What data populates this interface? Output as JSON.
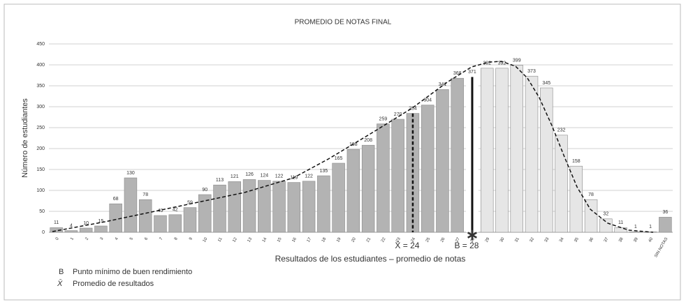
{
  "chart_data": {
    "type": "bar",
    "title": "PROMEDIO DE NOTAS FINAL",
    "y_label": "Número de estudiantes",
    "x_label": "Resultados de los estudiantes – promedio de notas",
    "categories": [
      "0",
      "1",
      "2",
      "3",
      "4",
      "5",
      "6",
      "7",
      "8",
      "9",
      "10",
      "11",
      "12",
      "13",
      "14",
      "15",
      "16",
      "17",
      "18",
      "19",
      "20",
      "21",
      "22",
      "23",
      "24",
      "25",
      "26",
      "27",
      "28",
      "29",
      "30",
      "31",
      "32",
      "33",
      "34",
      "35",
      "36",
      "37",
      "38",
      "39",
      "40",
      "SIN NOTAS"
    ],
    "values": [
      11,
      4,
      10,
      15,
      68,
      130,
      78,
      40,
      42,
      59,
      90,
      113,
      121,
      126,
      124,
      122,
      119,
      122,
      135,
      165,
      198,
      208,
      259,
      270,
      284,
      304,
      341,
      368,
      371,
      392,
      392,
      399,
      373,
      345,
      232,
      158,
      78,
      32,
      11,
      1,
      1,
      36
    ],
    "colors": [
      "#b3b3b3",
      "#b3b3b3",
      "#b3b3b3",
      "#b3b3b3",
      "#b3b3b3",
      "#b3b3b3",
      "#b3b3b3",
      "#b3b3b3",
      "#b3b3b3",
      "#b3b3b3",
      "#b3b3b3",
      "#b3b3b3",
      "#b3b3b3",
      "#b3b3b3",
      "#b3b3b3",
      "#b3b3b3",
      "#b3b3b3",
      "#b3b3b3",
      "#b3b3b3",
      "#b3b3b3",
      "#b3b3b3",
      "#b3b3b3",
      "#b3b3b3",
      "#b3b3b3",
      "#b3b3b3",
      "#b3b3b3",
      "#b3b3b3",
      "#b3b3b3",
      "#ffffff",
      "#e6e6e6",
      "#e6e6e6",
      "#e6e6e6",
      "#e6e6e6",
      "#e6e6e6",
      "#e6e6e6",
      "#e6e6e6",
      "#e6e6e6",
      "#e6e6e6",
      "#e6e6e6",
      "#e6e6e6",
      "#e6e6e6",
      "#b3b3b3"
    ],
    "ylim": [
      0,
      450
    ],
    "yticks": [
      0,
      50,
      100,
      150,
      200,
      250,
      300,
      350,
      400,
      450
    ],
    "grid": true,
    "markers": [
      {
        "label": "X̄ = 24",
        "value": 24,
        "style": "dashed"
      },
      {
        "label": "B = 28",
        "value": 28,
        "style": "solid"
      }
    ],
    "legend": [
      {
        "symbol": "B",
        "text": "Punto mínimo de buen rendimiento"
      },
      {
        "symbol": "X̄",
        "text": "Promedio de resultados"
      }
    ]
  }
}
